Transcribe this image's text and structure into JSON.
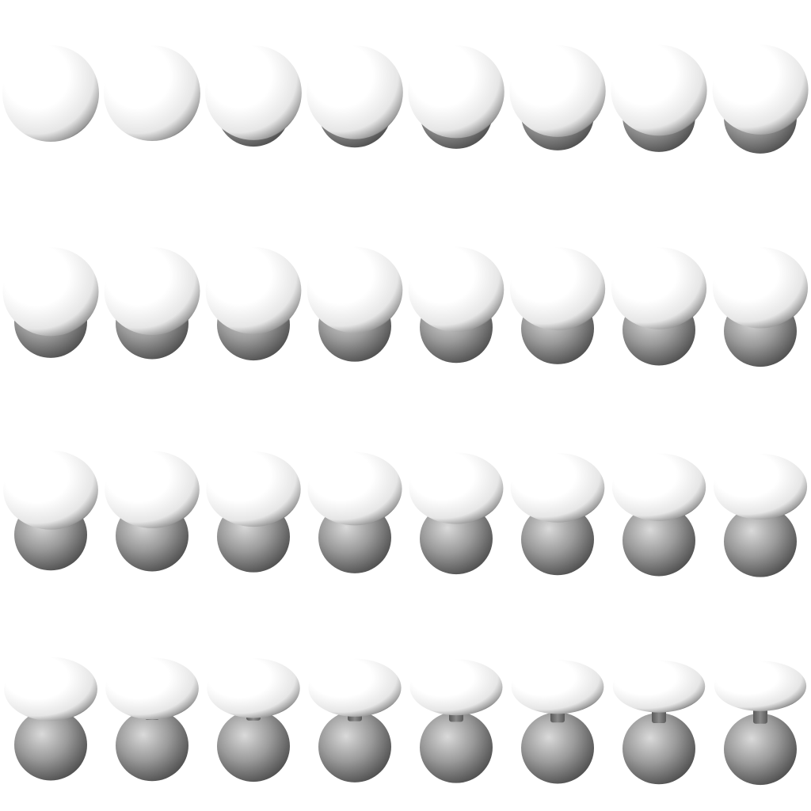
{
  "background": "#ffffff",
  "colors": {
    "cap_highlight": "#ffffff",
    "cap_mid": "#e6e6e6",
    "cap_shade": "#9a9a9a",
    "cap_edge": "#555555",
    "ball_highlight": "#dadada",
    "ball_mid": "#9a9a9a",
    "ball_shade": "#4a4a4a",
    "stem": "#5a5a5a"
  },
  "grid": {
    "rows": 4,
    "cols": 8
  },
  "frames": [
    {
      "sep": 0.0,
      "cap_flat": 1.0,
      "stem": 0.0
    },
    {
      "sep": 0.02,
      "cap_flat": 0.99,
      "stem": 0.0
    },
    {
      "sep": 0.05,
      "cap_flat": 0.98,
      "stem": 0.0
    },
    {
      "sep": 0.08,
      "cap_flat": 0.97,
      "stem": 0.0
    },
    {
      "sep": 0.12,
      "cap_flat": 0.96,
      "stem": 0.0
    },
    {
      "sep": 0.17,
      "cap_flat": 0.95,
      "stem": 0.0
    },
    {
      "sep": 0.22,
      "cap_flat": 0.94,
      "stem": 0.0
    },
    {
      "sep": 0.27,
      "cap_flat": 0.93,
      "stem": 0.0
    },
    {
      "sep": 0.32,
      "cap_flat": 0.92,
      "stem": 0.0
    },
    {
      "sep": 0.36,
      "cap_flat": 0.91,
      "stem": 0.0
    },
    {
      "sep": 0.4,
      "cap_flat": 0.9,
      "stem": 0.0
    },
    {
      "sep": 0.44,
      "cap_flat": 0.89,
      "stem": 0.0
    },
    {
      "sep": 0.48,
      "cap_flat": 0.88,
      "stem": 0.0
    },
    {
      "sep": 0.52,
      "cap_flat": 0.86,
      "stem": 0.0
    },
    {
      "sep": 0.56,
      "cap_flat": 0.85,
      "stem": 0.0
    },
    {
      "sep": 0.6,
      "cap_flat": 0.84,
      "stem": 0.0
    },
    {
      "sep": 0.63,
      "cap_flat": 0.82,
      "stem": 0.0
    },
    {
      "sep": 0.66,
      "cap_flat": 0.8,
      "stem": 0.0
    },
    {
      "sep": 0.69,
      "cap_flat": 0.78,
      "stem": 0.0
    },
    {
      "sep": 0.72,
      "cap_flat": 0.76,
      "stem": 0.0
    },
    {
      "sep": 0.75,
      "cap_flat": 0.74,
      "stem": 0.0
    },
    {
      "sep": 0.78,
      "cap_flat": 0.72,
      "stem": 0.02
    },
    {
      "sep": 0.81,
      "cap_flat": 0.7,
      "stem": 0.05
    },
    {
      "sep": 0.84,
      "cap_flat": 0.68,
      "stem": 0.08
    },
    {
      "sep": 0.86,
      "cap_flat": 0.66,
      "stem": 0.1
    },
    {
      "sep": 0.88,
      "cap_flat": 0.64,
      "stem": 0.13
    },
    {
      "sep": 0.9,
      "cap_flat": 0.62,
      "stem": 0.16
    },
    {
      "sep": 0.92,
      "cap_flat": 0.6,
      "stem": 0.19
    },
    {
      "sep": 0.94,
      "cap_flat": 0.58,
      "stem": 0.22
    },
    {
      "sep": 0.96,
      "cap_flat": 0.56,
      "stem": 0.25
    },
    {
      "sep": 0.98,
      "cap_flat": 0.54,
      "stem": 0.28
    },
    {
      "sep": 1.0,
      "cap_flat": 0.52,
      "stem": 0.31
    }
  ]
}
